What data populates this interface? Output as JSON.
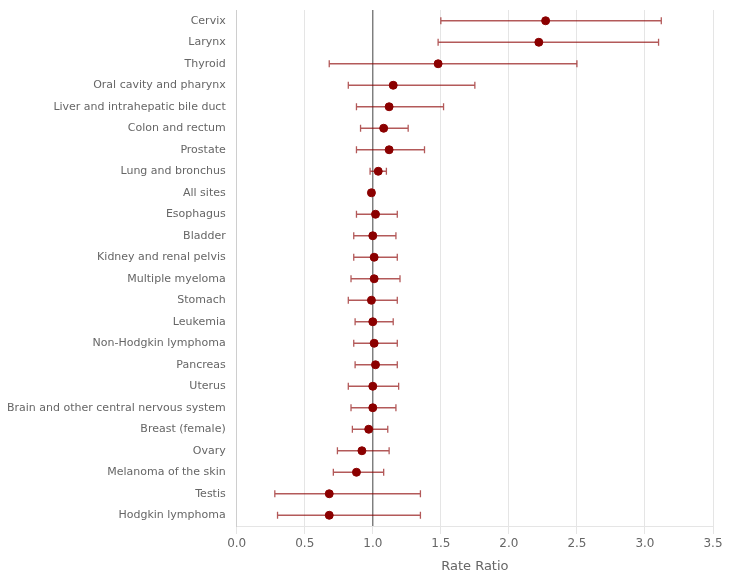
{
  "chart_data": {
    "type": "scatter",
    "categories": [
      "Cervix",
      "Larynx",
      "Thyroid",
      "Oral cavity and pharynx",
      "Liver and intrahepatic bile duct",
      "Colon and rectum",
      "Prostate",
      "Lung and bronchus",
      "All sites",
      "Esophagus",
      "Bladder",
      "Kidney and renal pelvis",
      "Multiple myeloma",
      "Stomach",
      "Leukemia",
      "Non-Hodgkin lymphoma",
      "Pancreas",
      "Uterus",
      "Brain and other central nervous system",
      "Breast (female)",
      "Ovary",
      "Melanoma of the skin",
      "Testis",
      "Hodgkin lymphoma"
    ],
    "values": [
      2.27,
      2.22,
      1.48,
      1.15,
      1.12,
      1.08,
      1.12,
      1.04,
      0.99,
      1.02,
      1.0,
      1.01,
      1.01,
      0.99,
      1.0,
      1.01,
      1.02,
      1.0,
      1.0,
      0.97,
      0.92,
      0.88,
      0.68,
      0.68
    ],
    "lower": [
      1.5,
      1.48,
      0.68,
      0.82,
      0.88,
      0.91,
      0.88,
      0.98,
      0.98,
      0.88,
      0.86,
      0.86,
      0.84,
      0.82,
      0.87,
      0.86,
      0.87,
      0.82,
      0.84,
      0.85,
      0.74,
      0.71,
      0.28,
      0.3
    ],
    "upper": [
      3.12,
      3.1,
      2.5,
      1.75,
      1.52,
      1.26,
      1.38,
      1.1,
      1.01,
      1.18,
      1.17,
      1.18,
      1.2,
      1.18,
      1.15,
      1.18,
      1.18,
      1.19,
      1.17,
      1.11,
      1.12,
      1.08,
      1.35,
      1.35
    ],
    "reference_line": 1.0,
    "color": "#8B0000",
    "xlabel": "Rate Ratio",
    "xlim": [
      0.0,
      3.5
    ],
    "xticks": [
      {
        "value": 0.0,
        "label": "0.0"
      },
      {
        "value": 0.5,
        "label": "0.5"
      },
      {
        "value": 1.0,
        "label": "1.0"
      },
      {
        "value": 1.5,
        "label": "1.5"
      },
      {
        "value": 2.0,
        "label": "2.0"
      },
      {
        "value": 2.5,
        "label": "2.5"
      },
      {
        "value": 3.0,
        "label": "3.0"
      },
      {
        "value": 3.5,
        "label": "3.5"
      }
    ],
    "grid": true
  }
}
